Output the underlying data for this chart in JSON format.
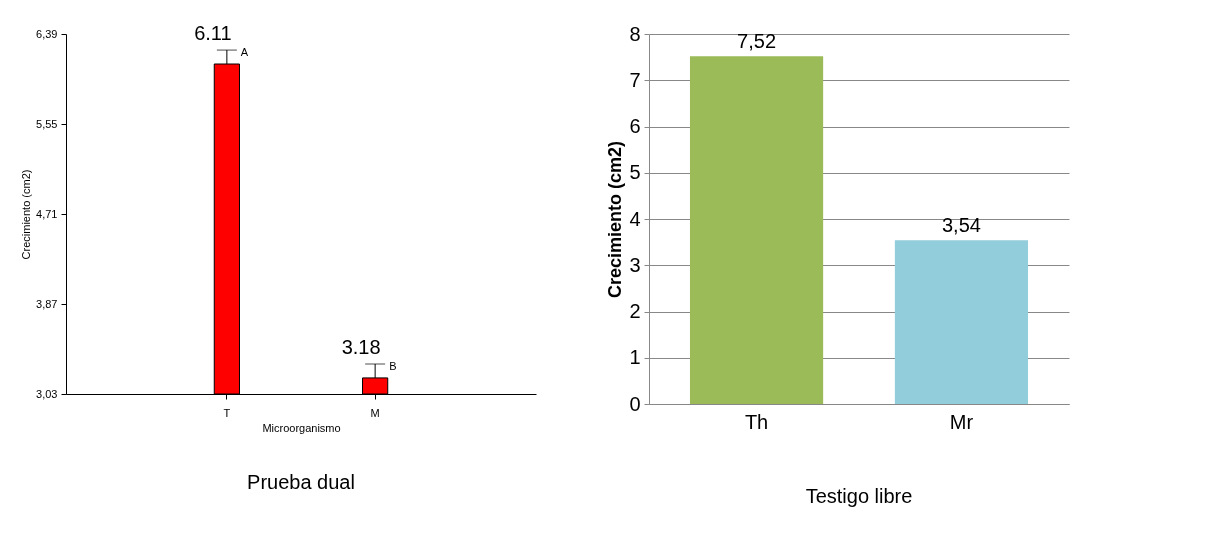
{
  "chart_data": [
    {
      "type": "bar",
      "title": "Prueba dual",
      "xlabel": "Microorganismo",
      "ylabel": "Crecimiento (cm2)",
      "categories": [
        "T",
        "M"
      ],
      "values": [
        6.11,
        3.18
      ],
      "color": "#ff0000",
      "errors": [
        [
          6.11,
          6.24
        ],
        [
          3.18,
          3.31
        ]
      ],
      "ylim": [
        3.03,
        6.39
      ],
      "yticks": [
        {
          "value": 3.03,
          "label": "3,03"
        },
        {
          "value": 3.87,
          "label": "3,87"
        },
        {
          "value": 4.71,
          "label": "4,71"
        },
        {
          "value": 5.55,
          "label": "5,55"
        },
        {
          "value": 6.39,
          "label": "6,39"
        }
      ],
      "data_labels": true,
      "grid": false,
      "annotations": [
        {
          "text": "A",
          "x": "T",
          "y": 6.24
        },
        {
          "text": "B",
          "x": "M",
          "y": 3.31
        }
      ]
    },
    {
      "type": "bar",
      "title": "Testigo libre",
      "ylabel": "Crecimiento (cm2)",
      "categories": [
        "Th",
        "Mr"
      ],
      "values": [
        7.52,
        3.54
      ],
      "colors": [
        "#9bbb59",
        "#92cddc"
      ],
      "value_labels": [
        "7,52",
        "3,54"
      ],
      "ylim": [
        0,
        8
      ],
      "yticks": [
        0,
        1,
        2,
        3,
        4,
        5,
        6,
        7,
        8
      ],
      "grid": "y"
    }
  ]
}
